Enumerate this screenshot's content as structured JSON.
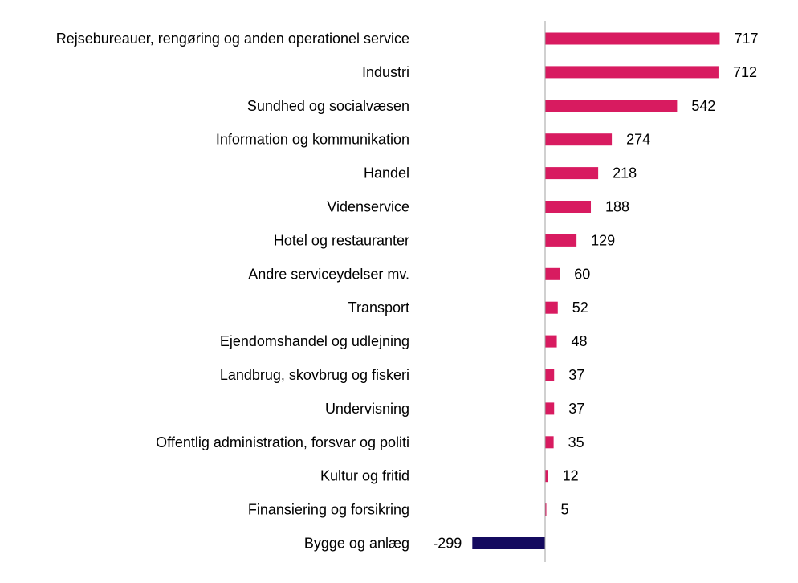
{
  "chart_data": {
    "type": "bar",
    "orientation": "horizontal",
    "title": "",
    "xlabel": "",
    "ylabel": "",
    "categories": [
      "Rejsebureauer, rengøring og anden operationel service",
      "Industri",
      "Sundhed og socialvæsen",
      "Information og kommunikation",
      "Handel",
      "Videnservice",
      "Hotel og restauranter",
      "Andre serviceydelser  mv.",
      "Transport",
      "Ejendomshandel og udlejning",
      "Landbrug, skovbrug og fiskeri",
      "Undervisning",
      "Offentlig administration, forsvar og politi",
      "Kultur og fritid",
      "Finansiering og forsikring",
      "Bygge og anlæg"
    ],
    "values": [
      717,
      712,
      542,
      274,
      218,
      188,
      129,
      60,
      52,
      48,
      37,
      37,
      35,
      12,
      5,
      -299
    ],
    "value_labels": [
      "717",
      "712",
      "542",
      "274",
      "218",
      "188",
      "129",
      "60",
      "52",
      "48",
      "37",
      "37",
      "35",
      "12",
      "5",
      "-299"
    ],
    "xlim": [
      -299,
      717
    ],
    "grid": false,
    "legend": "none",
    "colors": {
      "positive": "#d81b60",
      "negative": "#140a5f",
      "axis": "#a0a0a0"
    }
  }
}
